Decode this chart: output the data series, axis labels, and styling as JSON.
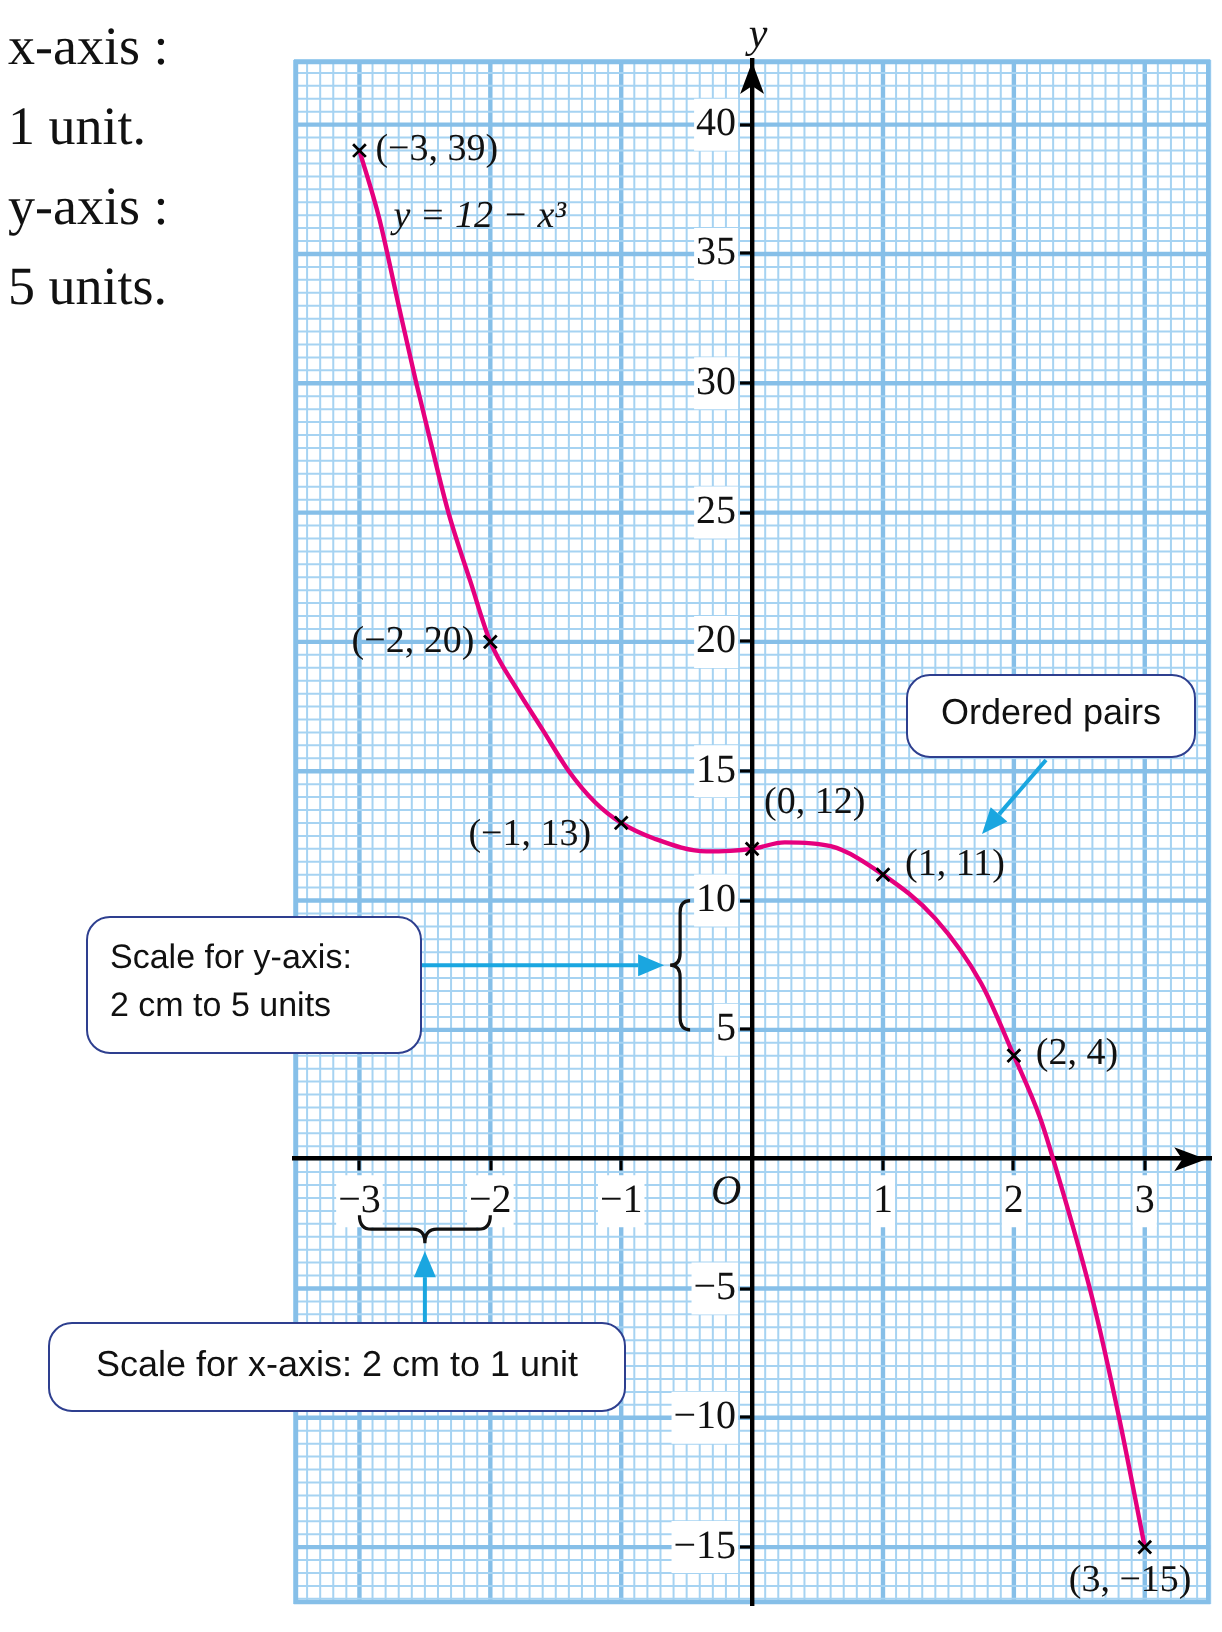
{
  "chart_data": {
    "type": "line",
    "ylabel": "y",
    "annotations": [
      "O",
      "x-axis :\n1 unit.\ny-axis :\n5 units.",
      "Ordered pairs",
      "Scale for y-axis:\n2 cm to 5 units",
      "Scale for x-axis: 2 cm to 1 unit"
    ],
    "series": [
      {
        "name": "y = 12 − x³",
        "color": "#e5007e",
        "marker": "none",
        "x": [
          -3,
          -2.85,
          -2.7,
          -2.57,
          -2.45,
          -2.32,
          -2.15,
          -2,
          -1.8,
          -1.6,
          -1.4,
          -1.2,
          -1,
          -0.75,
          -0.35,
          0,
          0.25,
          0.6,
          1,
          1.4,
          1.75,
          2,
          2.2,
          2.3,
          2.6,
          2.8,
          2.95,
          3
        ],
        "values": [
          39,
          36.4,
          33,
          30.1,
          27.6,
          25,
          22.3,
          20,
          18.2,
          16.6,
          15,
          13.8,
          13,
          12.4,
          11.9,
          12,
          12.25,
          12.1,
          11,
          9.3,
          6.8,
          4,
          1.6,
          0,
          -5.4,
          -9.9,
          -13.7,
          -15
        ]
      },
      {
        "type": "scatter",
        "color": "#000000",
        "marker": "cross",
        "x": [
          -3,
          -2,
          -1,
          0,
          1,
          2,
          3
        ],
        "values": [
          39,
          20,
          13,
          12,
          11,
          4,
          -15
        ],
        "value_labels": [
          "(−3, 39)",
          "(−2, 20)",
          "(−1, 13)",
          "(0, 12)",
          "(1, 11)",
          "(2, 4)",
          "(3, −15)"
        ]
      }
    ],
    "xlim": [
      -3.5,
      3.5
    ],
    "ylim": [
      -17.2,
      42.5
    ],
    "xticks": [
      {
        "value": -3.5,
        "label": null
      },
      {
        "value": -3.4,
        "label": null
      },
      {
        "value": -3.3,
        "label": null
      },
      {
        "value": -3.2,
        "label": null
      },
      {
        "value": -3.1,
        "label": null
      },
      {
        "value": -3,
        "label": "−3"
      },
      {
        "value": -2.9,
        "label": null
      },
      {
        "value": -2.8,
        "label": null
      },
      {
        "value": -2.7,
        "label": null
      },
      {
        "value": -2.6,
        "label": null
      },
      {
        "value": -2.5,
        "label": null
      },
      {
        "value": -2.4,
        "label": null
      },
      {
        "value": -2.3,
        "label": null
      },
      {
        "value": -2.2,
        "label": null
      },
      {
        "value": -2.1,
        "label": null
      },
      {
        "value": -2,
        "label": "−2"
      },
      {
        "value": -1.9,
        "label": null
      },
      {
        "value": -1.8,
        "label": null
      },
      {
        "value": -1.7,
        "label": null
      },
      {
        "value": -1.6,
        "label": null
      },
      {
        "value": -1.5,
        "label": null
      },
      {
        "value": -1.4,
        "label": null
      },
      {
        "value": -1.3,
        "label": null
      },
      {
        "value": -1.2,
        "label": null
      },
      {
        "value": -1.1,
        "label": null
      },
      {
        "value": -1,
        "label": "−1"
      },
      {
        "value": -0.9,
        "label": null
      },
      {
        "value": -0.8,
        "label": null
      },
      {
        "value": -0.7,
        "label": null
      },
      {
        "value": -0.6,
        "label": null
      },
      {
        "value": -0.5,
        "label": null
      },
      {
        "value": -0.4,
        "label": null
      },
      {
        "value": -0.3,
        "label": null
      },
      {
        "value": -0.2,
        "label": null
      },
      {
        "value": -0.1,
        "label": null
      },
      {
        "value": 0,
        "label": null
      },
      {
        "value": 0.1,
        "label": null
      },
      {
        "value": 0.2,
        "label": null
      },
      {
        "value": 0.3,
        "label": null
      },
      {
        "value": 0.4,
        "label": null
      },
      {
        "value": 0.5,
        "label": null
      },
      {
        "value": 0.6,
        "label": null
      },
      {
        "value": 0.7,
        "label": null
      },
      {
        "value": 0.8,
        "label": null
      },
      {
        "value": 0.9,
        "label": null
      },
      1,
      {
        "value": 1.1,
        "label": null
      },
      {
        "value": 1.2,
        "label": null
      },
      {
        "value": 1.3,
        "label": null
      },
      {
        "value": 1.4,
        "label": null
      },
      {
        "value": 1.5,
        "label": null
      },
      {
        "value": 1.6,
        "label": null
      },
      {
        "value": 1.7,
        "label": null
      },
      {
        "value": 1.8,
        "label": null
      },
      {
        "value": 1.9,
        "label": null
      },
      2,
      {
        "value": 2.1,
        "label": null
      },
      {
        "value": 2.2,
        "label": null
      },
      {
        "value": 2.3,
        "label": null
      },
      {
        "value": 2.4,
        "label": null
      },
      {
        "value": 2.5,
        "label": null
      },
      {
        "value": 2.6,
        "label": null
      },
      {
        "value": 2.7,
        "label": null
      },
      {
        "value": 2.8,
        "label": null
      },
      {
        "value": 2.9,
        "label": null
      },
      3,
      {
        "value": 3.1,
        "label": null
      },
      {
        "value": 3.2,
        "label": null
      },
      {
        "value": 3.3,
        "label": null
      },
      {
        "value": 3.4,
        "label": null
      },
      {
        "value": 3.5,
        "label": null
      }
    ],
    "yticks": [
      {
        "value": -17,
        "label": null
      },
      {
        "value": -16.5,
        "label": null
      },
      {
        "value": -16,
        "label": null
      },
      {
        "value": -15.5,
        "label": null
      },
      {
        "value": -15,
        "label": "−15"
      },
      {
        "value": -14.5,
        "label": null
      },
      {
        "value": -14,
        "label": null
      },
      {
        "value": -13.5,
        "label": null
      },
      {
        "value": -13,
        "label": null
      },
      {
        "value": -12.5,
        "label": null
      },
      {
        "value": -12,
        "label": null
      },
      {
        "value": -11.5,
        "label": null
      },
      {
        "value": -11,
        "label": null
      },
      {
        "value": -10.5,
        "label": null
      },
      {
        "value": -10,
        "label": "−10"
      },
      {
        "value": -9.5,
        "label": null
      },
      {
        "value": -9,
        "label": null
      },
      {
        "value": -8.5,
        "label": null
      },
      {
        "value": -8,
        "label": null
      },
      {
        "value": -7.5,
        "label": null
      },
      {
        "value": -7,
        "label": null
      },
      {
        "value": -6.5,
        "label": null
      },
      {
        "value": -6,
        "label": null
      },
      {
        "value": -5.5,
        "label": null
      },
      {
        "value": -5,
        "label": "−5"
      },
      {
        "value": -4.5,
        "label": null
      },
      {
        "value": -4,
        "label": null
      },
      {
        "value": -3.5,
        "label": null
      },
      {
        "value": -3,
        "label": null
      },
      {
        "value": -2.5,
        "label": null
      },
      {
        "value": -2,
        "label": null
      },
      {
        "value": -1.5,
        "label": null
      },
      {
        "value": -1,
        "label": null
      },
      {
        "value": -0.5,
        "label": null
      },
      {
        "value": 0,
        "label": null
      },
      {
        "value": 0.5,
        "label": null
      },
      {
        "value": 1,
        "label": null
      },
      {
        "value": 1.5,
        "label": null
      },
      {
        "value": 2,
        "label": null
      },
      {
        "value": 2.5,
        "label": null
      },
      {
        "value": 3,
        "label": null
      },
      {
        "value": 3.5,
        "label": null
      },
      {
        "value": 4,
        "label": null
      },
      {
        "value": 4.5,
        "label": null
      },
      5,
      {
        "value": 5.5,
        "label": null
      },
      {
        "value": 6,
        "label": null
      },
      {
        "value": 6.5,
        "label": null
      },
      {
        "value": 7,
        "label": null
      },
      {
        "value": 7.5,
        "label": null
      },
      {
        "value": 8,
        "label": null
      },
      {
        "value": 8.5,
        "label": null
      },
      {
        "value": 9,
        "label": null
      },
      {
        "value": 9.5,
        "label": null
      },
      10,
      {
        "value": 10.5,
        "label": null
      },
      {
        "value": 11,
        "label": null
      },
      {
        "value": 11.5,
        "label": null
      },
      {
        "value": 12,
        "label": null
      },
      {
        "value": 12.5,
        "label": null
      },
      {
        "value": 13,
        "label": null
      },
      {
        "value": 13.5,
        "label": null
      },
      {
        "value": 14,
        "label": null
      },
      {
        "value": 14.5,
        "label": null
      },
      15,
      {
        "value": 15.5,
        "label": null
      },
      {
        "value": 16,
        "label": null
      },
      {
        "value": 16.5,
        "label": null
      },
      {
        "value": 17,
        "label": null
      },
      {
        "value": 17.5,
        "label": null
      },
      {
        "value": 18,
        "label": null
      },
      {
        "value": 18.5,
        "label": null
      },
      {
        "value": 19,
        "label": null
      },
      {
        "value": 19.5,
        "label": null
      },
      20,
      {
        "value": 20.5,
        "label": null
      },
      {
        "value": 21,
        "label": null
      },
      {
        "value": 21.5,
        "label": null
      },
      {
        "value": 22,
        "label": null
      },
      {
        "value": 22.5,
        "label": null
      },
      {
        "value": 23,
        "label": null
      },
      {
        "value": 23.5,
        "label": null
      },
      {
        "value": 24,
        "label": null
      },
      {
        "value": 24.5,
        "label": null
      },
      25,
      {
        "value": 25.5,
        "label": null
      },
      {
        "value": 26,
        "label": null
      },
      {
        "value": 26.5,
        "label": null
      },
      {
        "value": 27,
        "label": null
      },
      {
        "value": 27.5,
        "label": null
      },
      {
        "value": 28,
        "label": null
      },
      {
        "value": 28.5,
        "label": null
      },
      {
        "value": 29,
        "label": null
      },
      {
        "value": 29.5,
        "label": null
      },
      30,
      {
        "value": 30.5,
        "label": null
      },
      {
        "value": 31,
        "label": null
      },
      {
        "value": 31.5,
        "label": null
      },
      {
        "value": 32,
        "label": null
      },
      {
        "value": 32.5,
        "label": null
      },
      {
        "value": 33,
        "label": null
      },
      {
        "value": 33.5,
        "label": null
      },
      {
        "value": 34,
        "label": null
      },
      {
        "value": 34.5,
        "label": null
      },
      35,
      {
        "value": 35.5,
        "label": null
      },
      {
        "value": 36,
        "label": null
      },
      {
        "value": 36.5,
        "label": null
      },
      {
        "value": 37,
        "label": null
      },
      {
        "value": 37.5,
        "label": null
      },
      {
        "value": 38,
        "label": null
      },
      {
        "value": 38.5,
        "label": null
      },
      {
        "value": 39,
        "label": null
      },
      {
        "value": 39.5,
        "label": null
      },
      40,
      {
        "value": 40.5,
        "label": null
      },
      {
        "value": 41,
        "label": null
      },
      {
        "value": 41.5,
        "label": null
      },
      {
        "value": 42,
        "label": null
      },
      {
        "value": 42.5,
        "label": null
      }
    ],
    "grid": true
  }
}
